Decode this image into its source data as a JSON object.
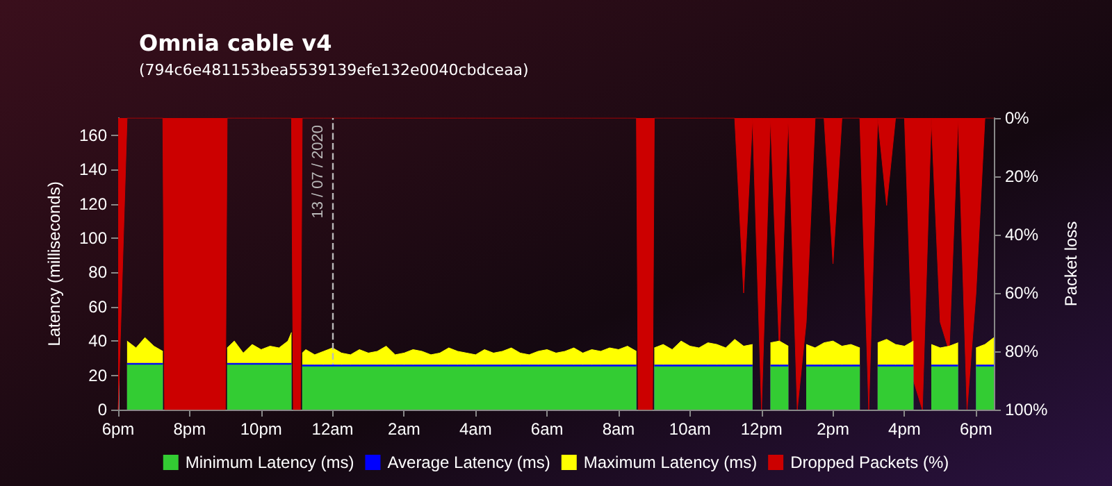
{
  "chart_data": {
    "type": "area",
    "title": "Omnia cable v4",
    "subtitle": "(794c6e481153bea5539139efe132e0040cbdceaa)",
    "ylabel": "Latency (milliseconds)",
    "y2label": "Packet loss",
    "x": [
      "2020-07-12T18:00",
      "2020-07-12T18:15",
      "2020-07-12T18:30",
      "2020-07-12T18:45",
      "2020-07-12T19:00",
      "2020-07-12T19:15",
      "2020-07-12T19:18",
      "2020-07-12T19:30",
      "2020-07-12T19:45",
      "2020-07-12T20:00",
      "2020-07-12T20:15",
      "2020-07-12T20:30",
      "2020-07-12T20:45",
      "2020-07-12T21:00",
      "2020-07-12T21:03",
      "2020-07-12T21:15",
      "2020-07-12T21:30",
      "2020-07-12T21:45",
      "2020-07-12T22:00",
      "2020-07-12T22:15",
      "2020-07-12T22:30",
      "2020-07-12T22:45",
      "2020-07-12T22:51",
      "2020-07-12T22:54",
      "2020-07-12T23:06",
      "2020-07-12T23:09",
      "2020-07-12T23:15",
      "2020-07-12T23:30",
      "2020-07-12T23:45",
      "2020-07-13T00:00",
      "2020-07-13T00:15",
      "2020-07-13T00:30",
      "2020-07-13T00:45",
      "2020-07-13T01:00",
      "2020-07-13T01:15",
      "2020-07-13T01:30",
      "2020-07-13T01:45",
      "2020-07-13T02:00",
      "2020-07-13T02:15",
      "2020-07-13T02:30",
      "2020-07-13T02:45",
      "2020-07-13T03:00",
      "2020-07-13T03:15",
      "2020-07-13T03:30",
      "2020-07-13T03:45",
      "2020-07-13T04:00",
      "2020-07-13T04:15",
      "2020-07-13T04:30",
      "2020-07-13T04:45",
      "2020-07-13T05:00",
      "2020-07-13T05:15",
      "2020-07-13T05:30",
      "2020-07-13T05:45",
      "2020-07-13T06:00",
      "2020-07-13T06:15",
      "2020-07-13T06:30",
      "2020-07-13T06:45",
      "2020-07-13T07:00",
      "2020-07-13T07:15",
      "2020-07-13T07:30",
      "2020-07-13T07:45",
      "2020-07-13T08:00",
      "2020-07-13T08:15",
      "2020-07-13T08:30",
      "2020-07-13T08:33",
      "2020-07-13T08:57",
      "2020-07-13T09:00",
      "2020-07-13T09:15",
      "2020-07-13T09:30",
      "2020-07-13T09:45",
      "2020-07-13T10:00",
      "2020-07-13T10:15",
      "2020-07-13T10:30",
      "2020-07-13T10:45",
      "2020-07-13T11:00",
      "2020-07-13T11:15",
      "2020-07-13T11:30",
      "2020-07-13T11:45",
      "2020-07-13T12:00",
      "2020-07-13T12:15",
      "2020-07-13T12:30",
      "2020-07-13T12:45",
      "2020-07-13T13:00",
      "2020-07-13T13:15",
      "2020-07-13T13:30",
      "2020-07-13T13:45",
      "2020-07-13T14:00",
      "2020-07-13T14:15",
      "2020-07-13T14:30",
      "2020-07-13T14:45",
      "2020-07-13T15:00",
      "2020-07-13T15:15",
      "2020-07-13T15:30",
      "2020-07-13T15:45",
      "2020-07-13T16:00",
      "2020-07-13T16:15",
      "2020-07-13T16:30",
      "2020-07-13T16:45",
      "2020-07-13T17:00",
      "2020-07-13T17:15",
      "2020-07-13T17:30",
      "2020-07-13T17:45",
      "2020-07-13T18:00",
      "2020-07-13T18:15",
      "2020-07-13T18:30"
    ],
    "series": [
      {
        "name": "Minimum Latency (ms)",
        "color": "#33cc33",
        "values": [
          null,
          26,
          26,
          26,
          26,
          26,
          null,
          null,
          null,
          null,
          null,
          null,
          null,
          null,
          26,
          26,
          26,
          26,
          26,
          26,
          26,
          26,
          26,
          null,
          null,
          25,
          25,
          25,
          25,
          25,
          25,
          25,
          25,
          25,
          25,
          25,
          25,
          25,
          25,
          25,
          25,
          25,
          25,
          25,
          25,
          25,
          25,
          25,
          25,
          25,
          25,
          25,
          25,
          25,
          25,
          25,
          25,
          25,
          25,
          25,
          25,
          25,
          25,
          25,
          null,
          null,
          25,
          25,
          25,
          25,
          25,
          25,
          25,
          25,
          25,
          25,
          25,
          25,
          null,
          25,
          25,
          25,
          null,
          25,
          25,
          25,
          25,
          25,
          25,
          25,
          null,
          25,
          25,
          25,
          25,
          25,
          null,
          25,
          25,
          25,
          25,
          null,
          25,
          25,
          25
        ]
      },
      {
        "name": "Average Latency (ms)",
        "color": "#0000ff",
        "values": [
          null,
          27,
          27,
          27,
          27,
          27,
          null,
          null,
          null,
          null,
          null,
          null,
          null,
          null,
          27,
          27,
          27,
          27,
          27,
          27,
          27,
          27,
          27,
          null,
          null,
          26,
          26,
          26,
          26,
          26,
          26,
          26,
          26,
          26,
          26,
          26,
          26,
          26,
          26,
          26,
          26,
          26,
          26,
          26,
          26,
          26,
          26,
          26,
          26,
          26,
          26,
          26,
          26,
          26,
          26,
          26,
          26,
          26,
          26,
          26,
          26,
          26,
          26,
          26,
          null,
          null,
          26,
          26,
          26,
          26,
          26,
          26,
          26,
          26,
          26,
          26,
          26,
          26,
          null,
          26,
          26,
          26,
          null,
          26,
          26,
          26,
          26,
          26,
          26,
          26,
          null,
          26,
          26,
          26,
          26,
          26,
          null,
          26,
          26,
          26,
          26,
          null,
          26,
          26,
          26
        ]
      },
      {
        "name": "Maximum Latency (ms)",
        "color": "#ffff00",
        "values": [
          null,
          40,
          36,
          42,
          37,
          34,
          null,
          null,
          null,
          null,
          null,
          null,
          null,
          null,
          36,
          40,
          33,
          38,
          35,
          37,
          36,
          40,
          45,
          null,
          null,
          33,
          35,
          32,
          34,
          36,
          33,
          32,
          35,
          33,
          34,
          37,
          32,
          33,
          35,
          34,
          32,
          33,
          36,
          34,
          33,
          32,
          35,
          33,
          34,
          36,
          33,
          32,
          34,
          35,
          33,
          34,
          36,
          33,
          35,
          34,
          36,
          35,
          37,
          34,
          null,
          null,
          36,
          38,
          35,
          40,
          37,
          36,
          39,
          38,
          36,
          41,
          37,
          38,
          null,
          39,
          40,
          37,
          null,
          38,
          36,
          39,
          40,
          37,
          38,
          36,
          null,
          39,
          41,
          38,
          37,
          40,
          null,
          38,
          36,
          37,
          39,
          null,
          36,
          38,
          42
        ]
      },
      {
        "name": "Dropped Packets (%)",
        "color": "#cc0000",
        "axis": "y2",
        "values": [
          100,
          0,
          0,
          0,
          0,
          0,
          100,
          100,
          100,
          100,
          100,
          100,
          100,
          100,
          0,
          0,
          0,
          0,
          0,
          0,
          0,
          0,
          0,
          100,
          100,
          0,
          0,
          0,
          0,
          0,
          0,
          0,
          0,
          0,
          0,
          0,
          0,
          0,
          0,
          0,
          0,
          0,
          0,
          0,
          0,
          0,
          0,
          0,
          0,
          0,
          0,
          0,
          0,
          0,
          0,
          0,
          0,
          0,
          0,
          0,
          0,
          0,
          0,
          0,
          100,
          100,
          0,
          0,
          0,
          0,
          0,
          0,
          0,
          0,
          0,
          0,
          60,
          0,
          100,
          0,
          80,
          0,
          100,
          70,
          0,
          0,
          50,
          0,
          0,
          0,
          100,
          0,
          30,
          0,
          0,
          90,
          100,
          0,
          70,
          80,
          0,
          100,
          60,
          0,
          0
        ]
      }
    ],
    "xlim": [
      "2020-07-12T18:00",
      "2020-07-13T18:30"
    ],
    "xticks": [
      {
        "value": "2020-07-12T18:00",
        "label": "6pm"
      },
      {
        "value": "2020-07-12T20:00",
        "label": "8pm"
      },
      {
        "value": "2020-07-12T22:00",
        "label": "10pm"
      },
      {
        "value": "2020-07-13T00:00",
        "label": "12am"
      },
      {
        "value": "2020-07-13T02:00",
        "label": "2am"
      },
      {
        "value": "2020-07-13T04:00",
        "label": "4am"
      },
      {
        "value": "2020-07-13T06:00",
        "label": "6am"
      },
      {
        "value": "2020-07-13T08:00",
        "label": "8am"
      },
      {
        "value": "2020-07-13T10:00",
        "label": "10am"
      },
      {
        "value": "2020-07-13T12:00",
        "label": "12pm"
      },
      {
        "value": "2020-07-13T14:00",
        "label": "2pm"
      },
      {
        "value": "2020-07-13T16:00",
        "label": "4pm"
      },
      {
        "value": "2020-07-13T18:00",
        "label": "6pm"
      }
    ],
    "ylim": [
      0,
      170
    ],
    "yticks": [
      0,
      20,
      40,
      60,
      80,
      100,
      120,
      140,
      160
    ],
    "y2lim": [
      100,
      0
    ],
    "y2ticks": [
      {
        "value": 0,
        "label": "0%"
      },
      {
        "value": 20,
        "label": "20%"
      },
      {
        "value": 40,
        "label": "40%"
      },
      {
        "value": 60,
        "label": "60%"
      },
      {
        "value": 80,
        "label": "80%"
      },
      {
        "value": 100,
        "label": "100%"
      }
    ],
    "ref_lines": [
      {
        "axis": "x",
        "value": "2020-07-13T00:00",
        "label": "13 / 07 / 2020",
        "line_style": "dashed",
        "color": "#bbbbbb"
      }
    ],
    "legend": "bottom"
  }
}
